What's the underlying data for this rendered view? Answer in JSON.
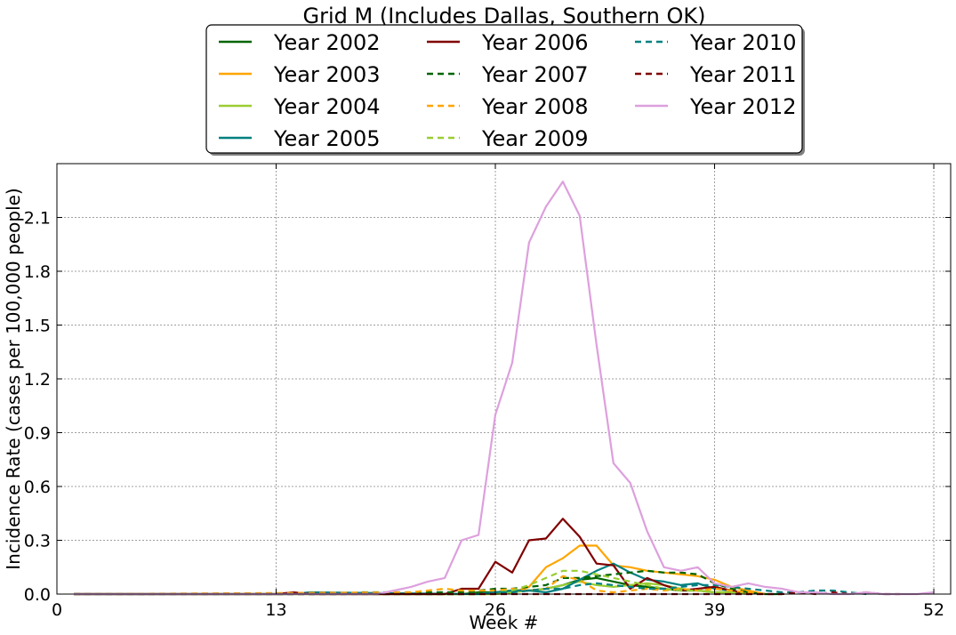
{
  "chart_data": {
    "type": "line",
    "title": "Grid M (Includes Dallas, Southern OK)",
    "xlabel": "Week #",
    "ylabel": "Incidence Rate (cases per 100,000 people)",
    "xlim": [
      0,
      53
    ],
    "ylim": [
      0,
      2.4
    ],
    "xticks": [
      0,
      13,
      26,
      39,
      52
    ],
    "yticks": [
      0.0,
      0.3,
      0.6,
      0.9,
      1.2,
      1.5,
      1.8,
      2.1
    ],
    "grid": true,
    "legend_location": "top-center, above plot",
    "series": [
      {
        "name": "Year 2002",
        "color": "#006400",
        "dash": "solid",
        "x": [
          1,
          24,
          25,
          26,
          27,
          28,
          29,
          30,
          31,
          32,
          33,
          34,
          35,
          36,
          37,
          38,
          39,
          40,
          41,
          42,
          43
        ],
        "y": [
          0,
          0,
          0.01,
          0.01,
          0.02,
          0.02,
          0.03,
          0.05,
          0.08,
          0.09,
          0.07,
          0.05,
          0.04,
          0.03,
          0.02,
          0.02,
          0.01,
          0.01,
          0.01,
          0,
          0
        ]
      },
      {
        "name": "Year 2003",
        "color": "#FFA500",
        "dash": "solid",
        "x": [
          1,
          26,
          27,
          28,
          29,
          30,
          31,
          32,
          33,
          34,
          35,
          36,
          37,
          38,
          39,
          40,
          41,
          42
        ],
        "y": [
          0,
          0,
          0.01,
          0.04,
          0.15,
          0.2,
          0.27,
          0.27,
          0.16,
          0.15,
          0.13,
          0.12,
          0.11,
          0.1,
          0.08,
          0.04,
          0.02,
          0
        ]
      },
      {
        "name": "Year 2004",
        "color": "#9ACD32",
        "dash": "solid",
        "x": [
          1,
          26,
          27,
          28,
          29,
          30,
          31,
          32,
          33,
          34,
          35,
          36,
          37,
          38,
          39,
          40,
          41
        ],
        "y": [
          0,
          0,
          0.01,
          0.02,
          0.03,
          0.05,
          0.07,
          0.05,
          0.04,
          0.05,
          0.06,
          0.05,
          0.03,
          0.02,
          0.01,
          0.01,
          0
        ]
      },
      {
        "name": "Year 2005",
        "color": "#008080",
        "dash": "solid",
        "x": [
          1,
          14,
          15,
          25,
          26,
          27,
          28,
          29,
          30,
          31,
          32,
          33,
          34,
          35,
          36,
          37,
          38,
          39,
          40,
          41
        ],
        "y": [
          0,
          0,
          0.01,
          0,
          0.01,
          0.02,
          0.02,
          0.01,
          0.03,
          0.08,
          0.13,
          0.17,
          0.12,
          0.08,
          0.07,
          0.05,
          0.06,
          0.03,
          0.02,
          0
        ]
      },
      {
        "name": "Year 2006",
        "color": "#800000",
        "dash": "solid",
        "x": [
          1,
          13,
          14,
          15,
          23,
          24,
          25,
          26,
          27,
          28,
          29,
          30,
          31,
          32,
          33,
          34,
          35,
          36,
          37,
          38,
          39,
          40,
          41
        ],
        "y": [
          0,
          0,
          0.01,
          0,
          0,
          0.03,
          0.03,
          0.18,
          0.12,
          0.3,
          0.31,
          0.42,
          0.32,
          0.17,
          0.16,
          0.03,
          0.09,
          0.05,
          0.02,
          0.03,
          0.04,
          0.02,
          0
        ]
      },
      {
        "name": "Year 2007",
        "color": "#006400",
        "dash": "dashed",
        "x": [
          1,
          17,
          18,
          24,
          25,
          26,
          27,
          28,
          29,
          30,
          31,
          32,
          33,
          34,
          35,
          36,
          37,
          38,
          39,
          40,
          41,
          42
        ],
        "y": [
          0,
          0,
          0.01,
          0.01,
          0.02,
          0.03,
          0.03,
          0.04,
          0.05,
          0.09,
          0.09,
          0.1,
          0.11,
          0.12,
          0.13,
          0.12,
          0.12,
          0.11,
          0.06,
          0.03,
          0.01,
          0
        ]
      },
      {
        "name": "Year 2008",
        "color": "#FFA500",
        "dash": "dashed",
        "x": [
          1,
          21,
          22,
          23,
          24,
          25,
          26,
          27,
          28,
          29,
          30,
          31,
          32,
          33,
          34,
          35,
          36,
          37,
          38,
          39,
          40,
          41,
          42
        ],
        "y": [
          0,
          0.01,
          0.02,
          0.03,
          0.02,
          0.02,
          0.02,
          0.03,
          0.02,
          0.03,
          0.1,
          0.08,
          0.02,
          0.01,
          0.02,
          0.03,
          0.02,
          0.03,
          0.02,
          0.03,
          0.02,
          0.01,
          0
        ]
      },
      {
        "name": "Year 2009",
        "color": "#9ACD32",
        "dash": "dashed",
        "x": [
          1,
          25,
          26,
          27,
          28,
          29,
          30,
          31,
          32,
          33,
          34,
          35,
          36,
          37,
          38,
          39,
          40,
          41
        ],
        "y": [
          0,
          0,
          0.01,
          0.02,
          0.05,
          0.09,
          0.13,
          0.13,
          0.11,
          0.09,
          0.07,
          0.05,
          0.03,
          0.02,
          0.02,
          0.01,
          0.01,
          0
        ]
      },
      {
        "name": "Year 2010",
        "color": "#008080",
        "dash": "dashed",
        "x": [
          1,
          25,
          26,
          27,
          28,
          29,
          30,
          31,
          32,
          33,
          34,
          35,
          36,
          37,
          38,
          39,
          40,
          41,
          42,
          43,
          44,
          45,
          46,
          47,
          48
        ],
        "y": [
          0,
          0,
          0.01,
          0.01,
          0.02,
          0.03,
          0.03,
          0.05,
          0.06,
          0.05,
          0.04,
          0.03,
          0.03,
          0.04,
          0.05,
          0.05,
          0.04,
          0.03,
          0.02,
          0.01,
          0.01,
          0.02,
          0.02,
          0.01,
          0
        ]
      },
      {
        "name": "Year 2011",
        "color": "#800000",
        "dash": "dashed",
        "x": [
          1,
          43,
          44,
          45,
          46,
          47,
          48,
          49,
          50
        ],
        "y": [
          0,
          0,
          0.01,
          0,
          0.01,
          0,
          0.01,
          0,
          0
        ]
      },
      {
        "name": "Year 2012",
        "color": "#DDA0DD",
        "dash": "solid",
        "x": [
          1,
          19,
          20,
          21,
          22,
          23,
          24,
          25,
          26,
          27,
          28,
          29,
          30,
          31,
          32,
          33,
          34,
          35,
          36,
          37,
          38,
          39,
          40,
          41,
          42,
          43,
          44,
          45,
          46,
          47,
          48,
          49,
          50,
          51,
          52
        ],
        "y": [
          0,
          0,
          0.02,
          0.04,
          0.07,
          0.09,
          0.3,
          0.33,
          1.0,
          1.29,
          1.96,
          2.16,
          2.3,
          2.11,
          1.39,
          0.73,
          0.62,
          0.35,
          0.15,
          0.13,
          0.15,
          0.06,
          0.04,
          0.06,
          0.04,
          0.03,
          0.01,
          0.01,
          0,
          0,
          0.01,
          0,
          0,
          0,
          0.01
        ]
      }
    ]
  }
}
